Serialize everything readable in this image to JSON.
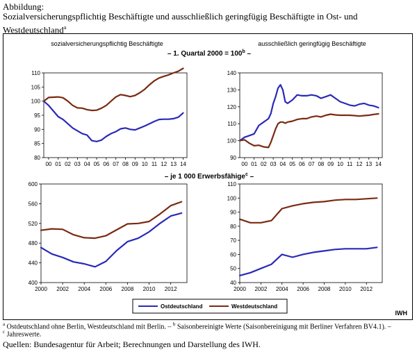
{
  "figure": {
    "label": "Abbildung:",
    "title": "Sozialversicherungspflichtig Beschäftigte und ausschließlich geringfügig Beschäftigte in Ost- und Westdeutschland",
    "title_sup": "a",
    "panel_header_top_left": "sozialversicherungspflichtig Beschäftigte",
    "panel_header_top_right": "ausschließlich geringfügig Beschäftigte",
    "row1_subtitle_pre": "– 1. Quartal 2000 = 100",
    "row1_subtitle_sup": "b",
    "row1_subtitle_post": " –",
    "row2_subtitle_pre": "– je 1 000 Erwerbsfähige",
    "row2_subtitle_sup": "c",
    "row2_subtitle_post": " –",
    "legend": {
      "ost": "Ostdeutschland",
      "west": "Westdeutschland"
    },
    "brand": "IWH",
    "footnote_a_sup": "a",
    "footnote_a_text": " Ostdeutschland ohne Berlin, Westdeutschland mit Berlin. – ",
    "footnote_b_sup": "b",
    "footnote_b_text": " Saisonbereinigte Werte (Saisonbereinigung mit Berliner Verfahren BV4.1). –",
    "footnote_c_sup": "c",
    "footnote_c_text": " Jahreswerte.",
    "sources": "Quellen: Bundesagentur für Arbeit; Berechnungen und Darstellung des IWH."
  },
  "colors": {
    "ost": "#2929b8",
    "west": "#7a2a12"
  },
  "chart_data": [
    {
      "type": "line",
      "id": "tl",
      "title": "sozialversicherungspflichtig Beschäftigte",
      "ylim": [
        80,
        110
      ],
      "yticks": [
        80,
        85,
        90,
        95,
        100,
        105,
        110
      ],
      "xlim": [
        2000,
        2014.9
      ],
      "xtick_values": [
        2000.5,
        2001.5,
        2002.5,
        2003.5,
        2004.5,
        2005.5,
        2006.5,
        2007.5,
        2008.5,
        2009.5,
        2010.5,
        2011.5,
        2012.5,
        2013.5,
        2014.5
      ],
      "xtick_labels": [
        "00",
        "01",
        "02",
        "03",
        "04",
        "05",
        "06",
        "07",
        "08",
        "09",
        "10",
        "11",
        "12",
        "13",
        "14"
      ],
      "series": [
        {
          "name": "Ostdeutschland",
          "key": "ost",
          "x": [
            2000,
            2000.5,
            2001,
            2001.5,
            2002,
            2002.5,
            2003,
            2003.5,
            2004,
            2004.5,
            2005,
            2005.5,
            2006,
            2006.5,
            2007,
            2007.5,
            2008,
            2008.5,
            2009,
            2009.5,
            2010,
            2010.5,
            2011,
            2011.5,
            2012,
            2012.5,
            2013,
            2013.5,
            2014,
            2014.5
          ],
          "y": [
            100,
            98.5,
            96.5,
            94.5,
            93.5,
            92,
            90.5,
            89.5,
            88.5,
            88,
            86,
            85.7,
            86.2,
            87.5,
            88.5,
            89.2,
            90.2,
            90.5,
            90,
            89.8,
            90.5,
            91.2,
            92,
            92.8,
            93.5,
            93.6,
            93.6,
            93.8,
            94.3,
            95.8
          ]
        },
        {
          "name": "Westdeutschland",
          "key": "west",
          "x": [
            2000,
            2000.5,
            2001,
            2001.5,
            2002,
            2002.5,
            2003,
            2003.5,
            2004,
            2004.5,
            2005,
            2005.5,
            2006,
            2006.5,
            2007,
            2007.5,
            2008,
            2008.5,
            2009,
            2009.5,
            2010,
            2010.5,
            2011,
            2011.5,
            2012,
            2012.5,
            2013,
            2013.5,
            2014,
            2014.5
          ],
          "y": [
            100,
            101.3,
            101.4,
            101.5,
            101.2,
            100,
            98.5,
            97.6,
            97.5,
            97,
            96.7,
            96.8,
            97.5,
            98.5,
            100,
            101.5,
            102.3,
            102,
            101.6,
            102,
            103,
            104.2,
            105.8,
            107.2,
            108.2,
            108.8,
            109.3,
            110,
            110.6,
            111.6
          ]
        }
      ]
    },
    {
      "type": "line",
      "id": "tr",
      "title": "ausschließlich geringfügig Beschäftigte",
      "ylim": [
        90,
        140
      ],
      "yticks": [
        90,
        100,
        110,
        120,
        130,
        140
      ],
      "xlim": [
        2000,
        2014.9
      ],
      "xtick_values": [
        2000.5,
        2001.5,
        2002.5,
        2003.5,
        2004.5,
        2005.5,
        2006.5,
        2007.5,
        2008.5,
        2009.5,
        2010.5,
        2011.5,
        2012.5,
        2013.5,
        2014.5
      ],
      "xtick_labels": [
        "00",
        "01",
        "02",
        "03",
        "04",
        "05",
        "06",
        "07",
        "08",
        "09",
        "10",
        "11",
        "12",
        "13",
        "14"
      ],
      "series": [
        {
          "name": "Ostdeutschland",
          "key": "ost",
          "x": [
            2000,
            2000.5,
            2001,
            2001.5,
            2002,
            2002.5,
            2003,
            2003.25,
            2003.5,
            2003.75,
            2004,
            2004.25,
            2004.5,
            2004.75,
            2005,
            2005.5,
            2006,
            2006.5,
            2007,
            2007.5,
            2008,
            2008.5,
            2009,
            2009.5,
            2010,
            2010.5,
            2011,
            2011.5,
            2012,
            2012.5,
            2013,
            2013.5,
            2014,
            2014.5
          ],
          "y": [
            100,
            102,
            103,
            104,
            109,
            111,
            113,
            116,
            122,
            126,
            131,
            133,
            130,
            123,
            122,
            124,
            127,
            126.5,
            126.5,
            127,
            126.5,
            125,
            126,
            127,
            125,
            123,
            122,
            121,
            120.5,
            121.5,
            122,
            121,
            120.5,
            119.5
          ]
        },
        {
          "name": "Westdeutschland",
          "key": "west",
          "x": [
            2000,
            2000.5,
            2001,
            2001.5,
            2002,
            2002.5,
            2003,
            2003.25,
            2003.5,
            2003.75,
            2004,
            2004.25,
            2004.5,
            2004.75,
            2005,
            2005.5,
            2006,
            2006.5,
            2007,
            2007.5,
            2008,
            2008.5,
            2009,
            2009.5,
            2010,
            2010.5,
            2011,
            2011.5,
            2012,
            2012.5,
            2013,
            2013.5,
            2014,
            2014.5
          ],
          "y": [
            100,
            100.5,
            98.5,
            97,
            97.3,
            96.3,
            96,
            99,
            103,
            107,
            110,
            111,
            111,
            110.3,
            111,
            111.5,
            112.5,
            113,
            113,
            114,
            114.5,
            114,
            115,
            115.6,
            115.2,
            115,
            115,
            115,
            114.8,
            114.5,
            114.8,
            115,
            115.5,
            115.8
          ]
        }
      ]
    },
    {
      "type": "line",
      "id": "bl",
      "title": "sozialversicherungspflichtig Beschäftigte",
      "ylim": [
        400,
        600
      ],
      "yticks": [
        400,
        440,
        480,
        520,
        560,
        600
      ],
      "xlim": [
        2000,
        2013.5
      ],
      "xtick_values": [
        2000,
        2002,
        2004,
        2006,
        2008,
        2010,
        2012
      ],
      "xtick_labels": [
        "2000",
        "2002",
        "2004",
        "2006",
        "2008",
        "2010",
        "2012"
      ],
      "series": [
        {
          "name": "Ostdeutschland",
          "key": "ost",
          "x": [
            2000,
            2001,
            2002,
            2003,
            2004,
            2005,
            2006,
            2007,
            2008,
            2009,
            2010,
            2011,
            2012,
            2013
          ],
          "y": [
            471,
            458,
            451,
            442,
            438,
            432,
            443,
            465,
            483,
            490,
            503,
            520,
            535,
            541
          ]
        },
        {
          "name": "Westdeutschland",
          "key": "west",
          "x": [
            2000,
            2001,
            2002,
            2003,
            2004,
            2005,
            2006,
            2007,
            2008,
            2009,
            2010,
            2011,
            2012,
            2013
          ],
          "y": [
            506,
            509,
            508,
            497,
            491,
            490,
            495,
            507,
            519,
            520,
            524,
            539,
            556,
            564
          ]
        }
      ]
    },
    {
      "type": "line",
      "id": "br",
      "title": "ausschließlich geringfügig Beschäftigte",
      "ylim": [
        40,
        110
      ],
      "yticks": [
        40,
        50,
        60,
        70,
        80,
        90,
        100,
        110
      ],
      "xlim": [
        2000,
        2013.5
      ],
      "xtick_values": [
        2000,
        2002,
        2004,
        2006,
        2008,
        2010,
        2012
      ],
      "xtick_labels": [
        "2000",
        "2002",
        "2004",
        "2006",
        "2008",
        "2010",
        "2012"
      ],
      "series": [
        {
          "name": "Ostdeutschland",
          "key": "ost",
          "x": [
            2000,
            2001,
            2002,
            2003,
            2004,
            2005,
            2006,
            2007,
            2008,
            2009,
            2010,
            2011,
            2012,
            2013
          ],
          "y": [
            45,
            47,
            50,
            53,
            60,
            58,
            60,
            61.5,
            62.5,
            63.5,
            64,
            64,
            64,
            65
          ]
        },
        {
          "name": "Westdeutschland",
          "key": "west",
          "x": [
            2000,
            2001,
            2002,
            2003,
            2004,
            2005,
            2006,
            2007,
            2008,
            2009,
            2010,
            2011,
            2012,
            2013
          ],
          "y": [
            85,
            82.5,
            82.5,
            84,
            92.5,
            94.5,
            96,
            97,
            97.5,
            98.5,
            99,
            99,
            99.5,
            100
          ]
        }
      ]
    }
  ]
}
